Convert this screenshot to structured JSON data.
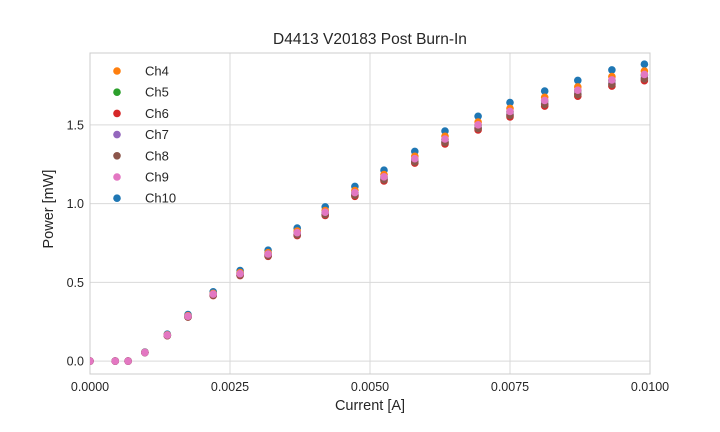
{
  "figure": {
    "background": "#ffffff"
  },
  "chart_data": {
    "type": "scatter",
    "title": "D4413 V20183 Post Burn-In",
    "xlabel": "Current [A]",
    "ylabel": "Power [mW]",
    "xlim": [
      0.0,
      0.01
    ],
    "ylim": [
      -0.082,
      1.956
    ],
    "grid": true,
    "legend_position": "upper-left",
    "xtick_values": [
      0.0,
      0.0025,
      0.005,
      0.0075,
      0.01
    ],
    "xtick_labels": [
      "0.0000",
      "0.0025",
      "0.0050",
      "0.0075",
      "0.0100"
    ],
    "ytick_values": [
      0.0,
      0.5,
      1.0,
      1.5
    ],
    "ytick_labels": [
      "0.0",
      "0.5",
      "1.0",
      "1.5"
    ],
    "x": [
      0.0,
      0.00045,
      0.00068,
      0.00098,
      0.00138,
      0.00175,
      0.0022,
      0.00268,
      0.00318,
      0.0037,
      0.0042,
      0.00473,
      0.00525,
      0.0058,
      0.00634,
      0.00693,
      0.0075,
      0.00812,
      0.00871,
      0.00932,
      0.0099
    ],
    "series": [
      {
        "name": "Ch4",
        "color": "#ff7f0e",
        "values": [
          0,
          0,
          0,
          0.056,
          0.167,
          0.288,
          0.43,
          0.562,
          0.688,
          0.825,
          0.956,
          1.083,
          1.184,
          1.3,
          1.427,
          1.518,
          1.604,
          1.675,
          1.741,
          1.806,
          1.842
        ]
      },
      {
        "name": "Ch5",
        "color": "#2ca02c",
        "values": [
          0,
          0,
          0,
          0.055,
          0.165,
          0.284,
          0.424,
          0.554,
          0.679,
          0.813,
          0.943,
          1.068,
          1.168,
          1.282,
          1.407,
          1.497,
          1.582,
          1.652,
          1.717,
          1.781,
          1.816
        ]
      },
      {
        "name": "Ch6",
        "color": "#d62728",
        "values": [
          0,
          0,
          0,
          0.054,
          0.161,
          0.279,
          0.416,
          0.543,
          0.665,
          0.797,
          0.924,
          1.046,
          1.144,
          1.257,
          1.379,
          1.467,
          1.55,
          1.619,
          1.682,
          1.746,
          1.78
        ]
      },
      {
        "name": "Ch7",
        "color": "#9467bd",
        "values": [
          0,
          0,
          0,
          0.054,
          0.163,
          0.282,
          0.42,
          0.548,
          0.672,
          0.805,
          0.934,
          1.057,
          1.156,
          1.27,
          1.393,
          1.482,
          1.566,
          1.635,
          1.699,
          1.764,
          1.798
        ]
      },
      {
        "name": "Ch8",
        "color": "#8c564b",
        "values": [
          0,
          0,
          0,
          0.054,
          0.162,
          0.28,
          0.418,
          0.546,
          0.669,
          0.802,
          0.93,
          1.053,
          1.151,
          1.264,
          1.387,
          1.476,
          1.56,
          1.629,
          1.692,
          1.756,
          1.791
        ]
      },
      {
        "name": "Ch9",
        "color": "#e377c2",
        "values": [
          0,
          0,
          0,
          0.055,
          0.165,
          0.285,
          0.425,
          0.555,
          0.68,
          0.815,
          0.945,
          1.07,
          1.17,
          1.285,
          1.41,
          1.5,
          1.585,
          1.655,
          1.72,
          1.785,
          1.82
        ]
      },
      {
        "name": "Ch10",
        "color": "#1f77b4",
        "values": [
          0,
          0,
          0,
          0.057,
          0.171,
          0.295,
          0.44,
          0.575,
          0.704,
          0.844,
          0.979,
          1.109,
          1.212,
          1.331,
          1.461,
          1.554,
          1.642,
          1.714,
          1.782,
          1.849,
          1.885
        ]
      }
    ],
    "draw_order": [
      "Ch10",
      "Ch4",
      "Ch5",
      "Ch6",
      "Ch7",
      "Ch8",
      "Ch9"
    ],
    "marker_radius": 3.8,
    "colors": {
      "grid": "#d9d9d9",
      "spine": "#cccccc",
      "text": "#262626"
    }
  }
}
